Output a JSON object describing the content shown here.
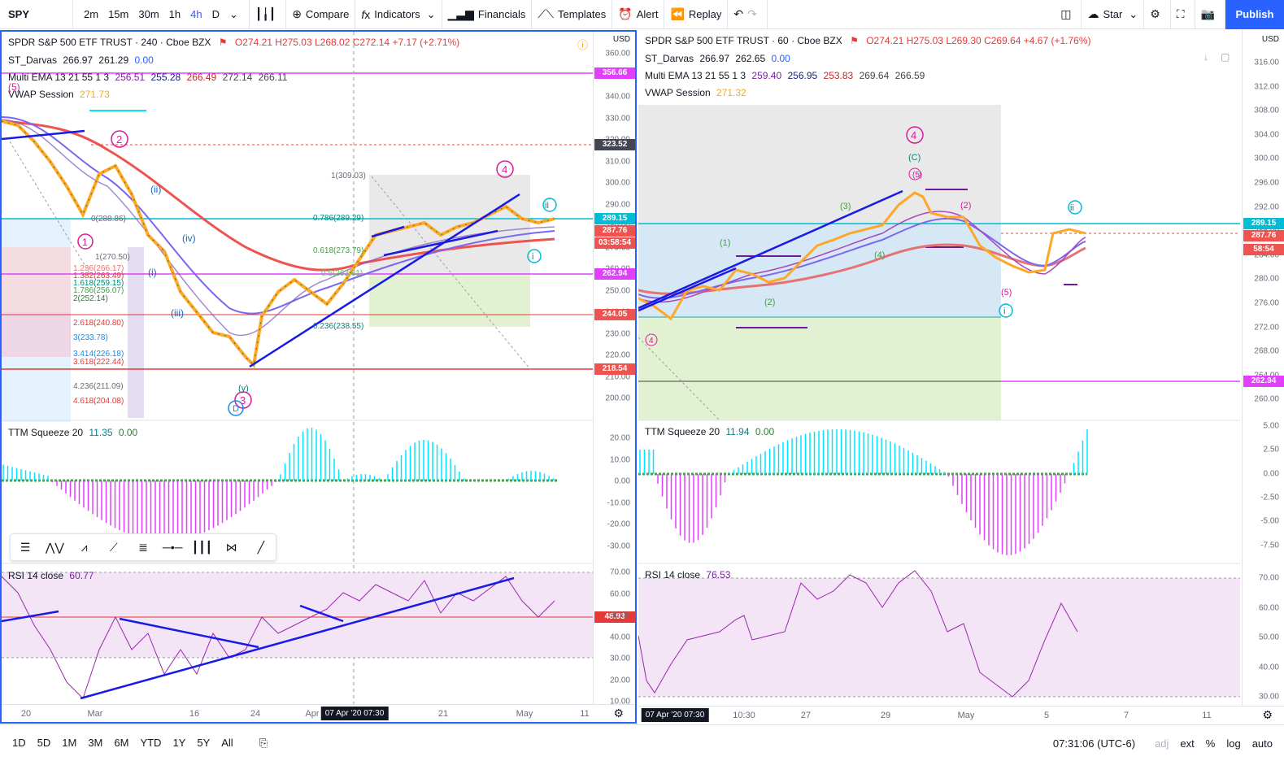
{
  "toolbar": {
    "symbol": "SPY",
    "intervals": [
      "2m",
      "15m",
      "30m",
      "1h",
      "4h",
      "D"
    ],
    "active_interval": "4h",
    "compare": "Compare",
    "indicators": "Indicators",
    "financials": "Financials",
    "templates": "Templates",
    "alert": "Alert",
    "replay": "Replay",
    "layout_name": "Star",
    "publish": "Publish"
  },
  "left": {
    "title": "SPDR S&P 500 ETF TRUST · 240 · Cboe BZX",
    "ohlc": {
      "o": "O274.21",
      "h": "H275.03",
      "l": "L268.02",
      "c": "C272.14",
      "chg": "+7.17 (+2.71%)"
    },
    "ind1": {
      "name": "ST_Darvas",
      "v1": "266.97",
      "v2": "261.29",
      "v3": "0.00"
    },
    "ind2": {
      "name": "Multi EMA 13 21 55 1 3",
      "v1": "256.51",
      "v2": "255.28",
      "v3": "266.49",
      "v4": "272.14",
      "v5": "266.11"
    },
    "ind3": {
      "name": "VWAP Session",
      "v1": "271.73"
    },
    "currency": "USD",
    "price_ticks": [
      "360.00",
      "350.00",
      "340.00",
      "330.00",
      "320.00",
      "310.00",
      "300.00",
      "290.00",
      "280.00",
      "270.00",
      "260.00",
      "250.00",
      "240.00",
      "230.00",
      "220.00",
      "210.00",
      "200.00"
    ],
    "price_tags": [
      {
        "v": "356.66",
        "c": "#e040fb"
      },
      {
        "v": "323.52",
        "c": "#434651"
      },
      {
        "v": "289.15",
        "c": "#00bcd4"
      },
      {
        "v": "287.76",
        "c": "#ef5350"
      },
      {
        "v": "03:58:54",
        "c": "#ef5350"
      },
      {
        "v": "262.94",
        "c": "#e040fb"
      },
      {
        "v": "244.05",
        "c": "#ef5350"
      },
      {
        "v": "218.54",
        "c": "#ef5350"
      }
    ],
    "fib_labels": [
      "1(309.03)",
      "0.786(289.29)",
      "0.618(273.79)",
      "0.5(263.81)",
      "0.236(238.55)",
      "1(270.50)",
      "1.236(266.17)",
      "1.382(263.49)",
      "1.618(259.15)",
      "1.786(256.07)",
      "2(252.14)",
      "2.618(240.80)",
      "3(233.78)",
      "3.414(226.18)",
      "3.618(222.44)",
      "4.236(211.09)",
      "4.618(204.08)",
      "0(288.86)"
    ],
    "ttm": {
      "name": "TTM Squeeze 20",
      "v1": "11.35",
      "v2": "0.00",
      "ticks": [
        "20.00",
        "10.00",
        "0.00",
        "-10.00",
        "-20.00",
        "-30.00"
      ]
    },
    "rsi": {
      "name": "RSI 14 close",
      "v1": "60.77",
      "tag": "48.93",
      "ticks": [
        "70.00",
        "60.00",
        "50.00",
        "40.00",
        "30.00",
        "20.00",
        "10.00"
      ]
    },
    "time_labels": [
      "20",
      "Mar",
      "16",
      "24",
      "Apr",
      "21",
      "May",
      "11"
    ],
    "cursor_time": "07 Apr '20   07:30"
  },
  "right": {
    "title": "SPDR S&P 500 ETF TRUST · 60 · Cboe BZX",
    "ohlc": {
      "o": "O274.21",
      "h": "H275.03",
      "l": "L269.30",
      "c": "C269.64",
      "chg": "+4.67 (+1.76%)"
    },
    "ind1": {
      "name": "ST_Darvas",
      "v1": "266.97",
      "v2": "262.65",
      "v3": "0.00"
    },
    "ind2": {
      "name": "Multi EMA 13 21 55 1 3",
      "v1": "259.40",
      "v2": "256.95",
      "v3": "253.83",
      "v4": "269.64",
      "v5": "266.59"
    },
    "ind3": {
      "name": "VWAP Session",
      "v1": "271.32"
    },
    "currency": "USD",
    "price_ticks": [
      "316.00",
      "312.00",
      "308.00",
      "304.00",
      "300.00",
      "296.00",
      "292.00",
      "288.00",
      "284.00",
      "280.00",
      "276.00",
      "272.00",
      "268.00",
      "264.00",
      "260.00"
    ],
    "price_tags": [
      {
        "v": "289.15",
        "c": "#00bcd4"
      },
      {
        "v": "287.76",
        "c": "#ef5350"
      },
      {
        "v": "58:54",
        "c": "#ef5350"
      },
      {
        "v": "262.94",
        "c": "#e040fb"
      }
    ],
    "ttm": {
      "name": "TTM Squeeze 20",
      "v1": "11.94",
      "v2": "0.00",
      "ticks": [
        "5.00",
        "2.50",
        "0.00",
        "-2.50",
        "-5.00",
        "-7.50"
      ]
    },
    "rsi": {
      "name": "RSI 14 close",
      "v1": "76.53",
      "ticks": [
        "70.00",
        "60.00",
        "50.00",
        "40.00",
        "30.00"
      ]
    },
    "time_labels": [
      "10:30",
      "27",
      "29",
      "May",
      "5",
      "7",
      "11"
    ],
    "cursor_time": "07 Apr '20   07:30"
  },
  "wave_labels": {
    "left": [
      "1",
      "2",
      "3",
      "4",
      "(5)",
      "(ii)",
      "(iv)",
      "(i)",
      "(iii)",
      "i",
      "(C)",
      "(A)",
      "(B)",
      "A",
      "B",
      "C",
      "D",
      "(y)",
      "(1)",
      "(2)",
      "(3)",
      "(4)",
      "(5)",
      "ii",
      "i"
    ],
    "right": [
      "4",
      "(C)",
      "(5)",
      "(3)",
      "(2)",
      "(1)",
      "(4)",
      "(5)",
      "ii",
      "i",
      "(2)",
      "4"
    ]
  },
  "bottom": {
    "ranges": [
      "1D",
      "5D",
      "1M",
      "3M",
      "6M",
      "YTD",
      "1Y",
      "5Y",
      "All"
    ],
    "clock": "07:31:06 (UTC-6)",
    "opts": [
      "adj",
      "ext",
      "%",
      "log",
      "auto"
    ]
  }
}
